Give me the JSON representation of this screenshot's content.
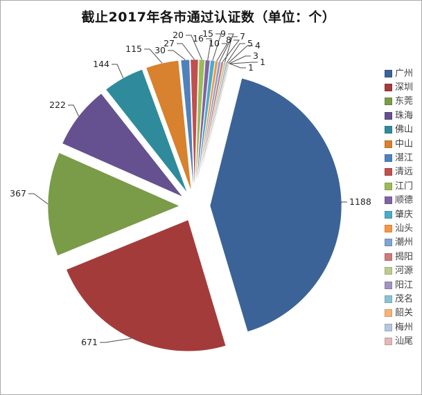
{
  "chart_data": {
    "type": "pie",
    "title": "截止2017年各市通过认证数（单位：个）",
    "legend_position": "right",
    "categories": [
      "广州",
      "深圳",
      "东莞",
      "珠海",
      "佛山",
      "中山",
      "湛江",
      "清远",
      "江门",
      "顺德",
      "肇庆",
      "汕头",
      "潮州",
      "揭阳",
      "河源",
      "阳江",
      "茂名",
      "韶关",
      "梅州",
      "汕尾"
    ],
    "values": [
      1188,
      671,
      367,
      222,
      144,
      115,
      30,
      27,
      20,
      16,
      15,
      10,
      9,
      8,
      7,
      5,
      4,
      3,
      1,
      1
    ],
    "colors": [
      "#3B6397",
      "#A43B3B",
      "#7A9B48",
      "#65518F",
      "#2F8B9B",
      "#D8812E",
      "#4F81BD",
      "#C0504D",
      "#9BBB59",
      "#8064A2",
      "#4BACC6",
      "#F79646",
      "#7FA3D3",
      "#CC7B79",
      "#BCCB8F",
      "#A294BE",
      "#8CC3D4",
      "#F7B279",
      "#B5C6DE",
      "#E3B8B8"
    ],
    "style": {
      "exploded": true,
      "background": "#ffffff",
      "leader_line_color": "#4a4a4a",
      "label_color": "#1f1f1f"
    }
  }
}
